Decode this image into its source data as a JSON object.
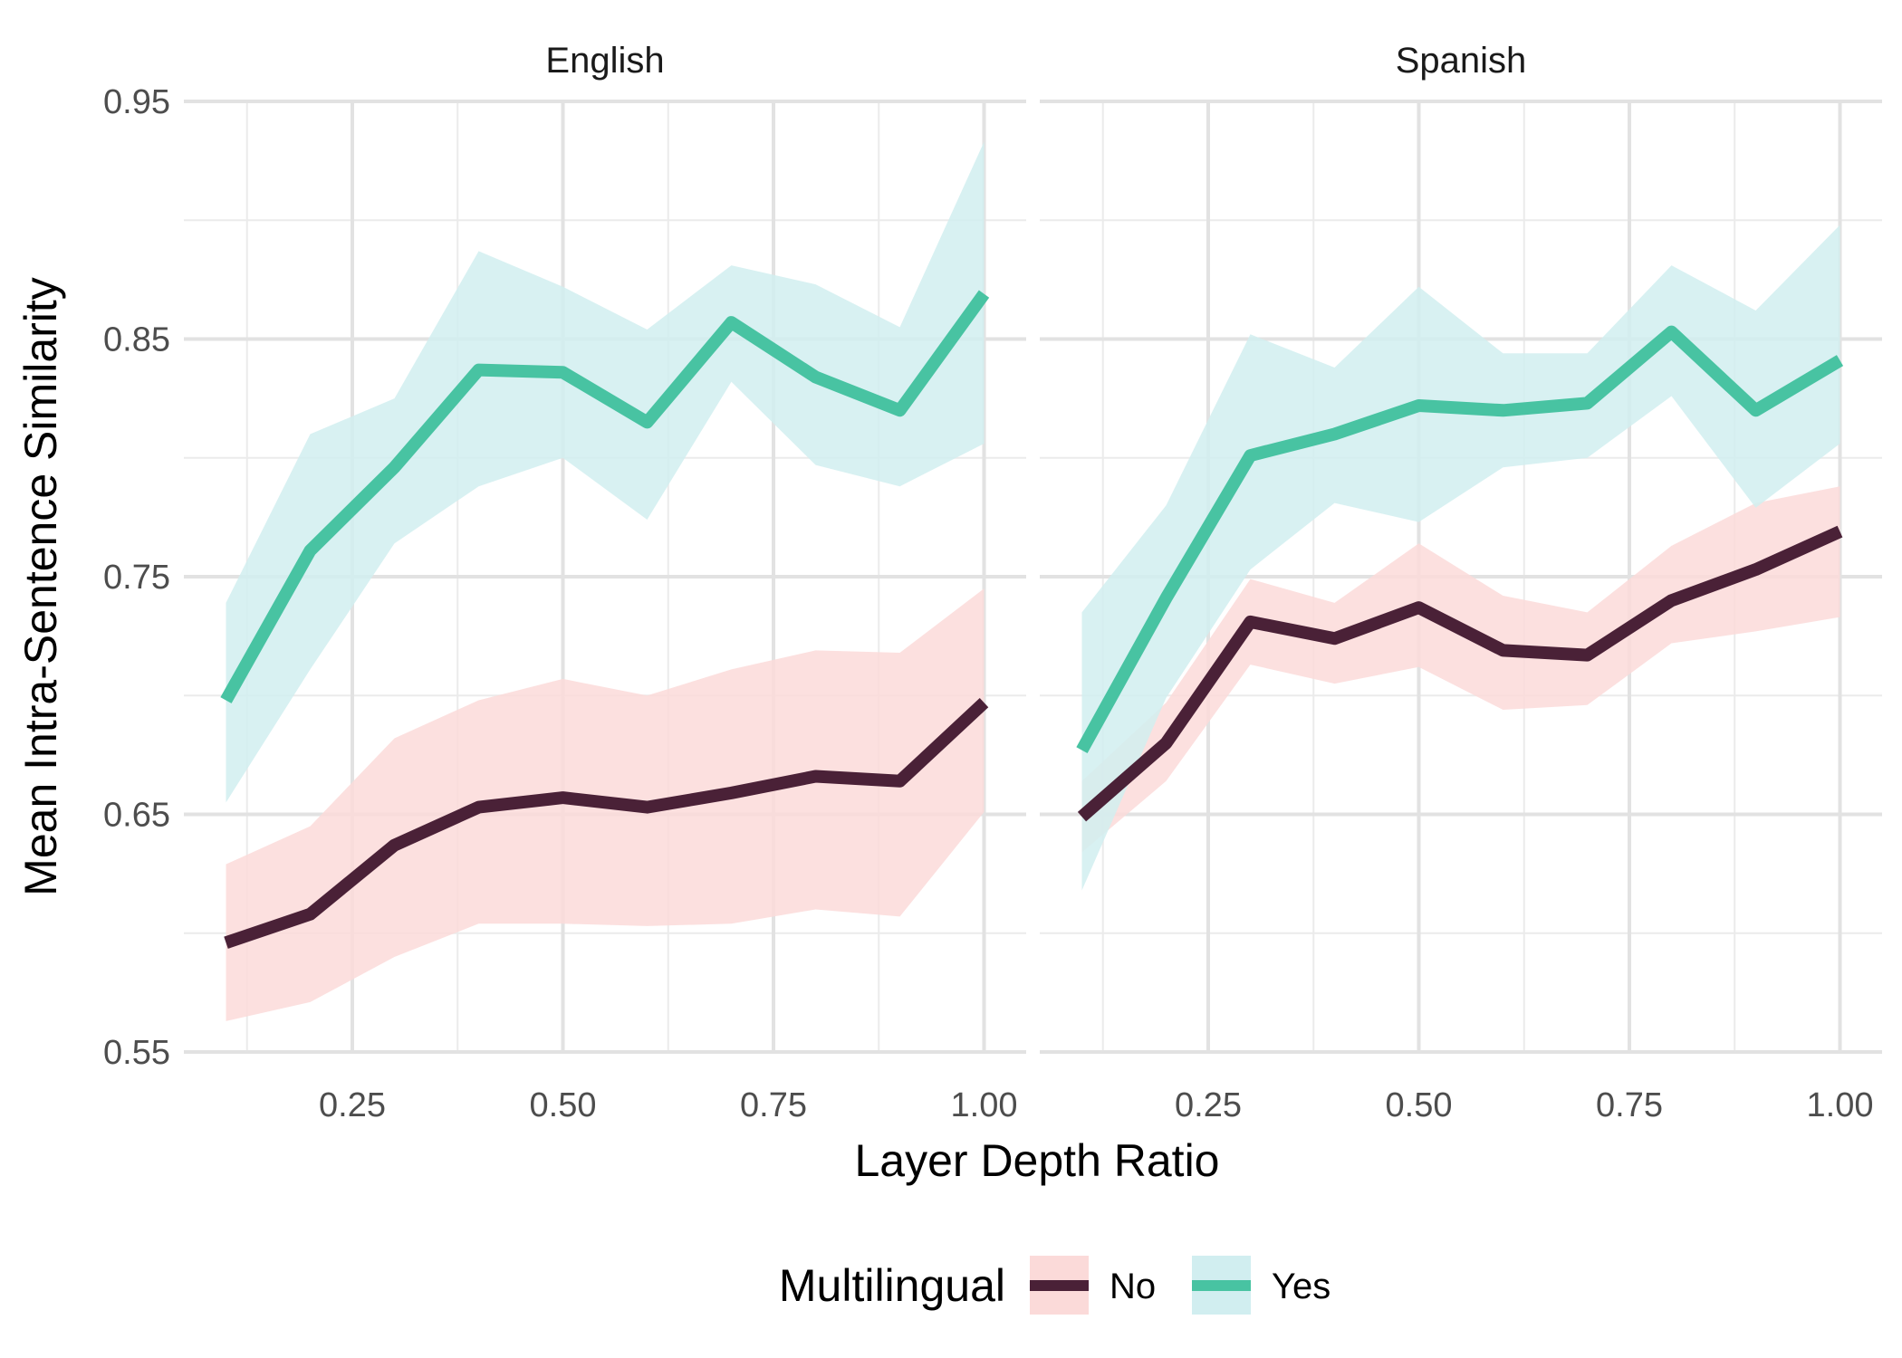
{
  "chart_data": {
    "type": "line",
    "ylabel": "Mean Intra-Sentence Similarity",
    "xlabel": "Layer Depth Ratio",
    "x_ticks": [
      "0.25",
      "0.50",
      "0.75",
      "1.00"
    ],
    "y_ticks": [
      "0.55",
      "0.65",
      "0.75",
      "0.85",
      "0.95"
    ],
    "xlim": [
      0.05,
      1.05
    ],
    "ylim": [
      0.55,
      0.95
    ],
    "grid": true,
    "legend": {
      "title": "Multilingual",
      "position": "bottom",
      "entries": [
        {
          "label": "No",
          "line_color": "#4a2137",
          "fill_color": "#fbdad9"
        },
        {
          "label": "Yes",
          "line_color": "#48c3a2",
          "fill_color": "#d1eef0"
        }
      ]
    },
    "panels": [
      {
        "title": "English",
        "x": [
          0.1,
          0.2,
          0.3,
          0.4,
          0.5,
          0.6,
          0.7,
          0.8,
          0.9,
          1.0
        ],
        "series": [
          {
            "name": "No",
            "values": [
              0.596,
              0.608,
              0.637,
              0.653,
              0.657,
              0.653,
              0.659,
              0.666,
              0.664,
              0.697
            ],
            "lower": [
              0.563,
              0.571,
              0.59,
              0.604,
              0.604,
              0.603,
              0.604,
              0.61,
              0.607,
              0.651
            ],
            "upper": [
              0.629,
              0.645,
              0.682,
              0.698,
              0.707,
              0.7,
              0.711,
              0.719,
              0.718,
              0.745
            ]
          },
          {
            "name": "Yes",
            "values": [
              0.698,
              0.761,
              0.796,
              0.837,
              0.836,
              0.815,
              0.857,
              0.834,
              0.82,
              0.869
            ],
            "lower": [
              0.655,
              0.711,
              0.764,
              0.788,
              0.8,
              0.774,
              0.832,
              0.797,
              0.788,
              0.806
            ],
            "upper": [
              0.739,
              0.81,
              0.825,
              0.887,
              0.872,
              0.854,
              0.881,
              0.873,
              0.855,
              0.933
            ]
          }
        ]
      },
      {
        "title": "Spanish",
        "x": [
          0.1,
          0.2,
          0.3,
          0.4,
          0.5,
          0.6,
          0.7,
          0.8,
          0.9,
          1.0
        ],
        "series": [
          {
            "name": "No",
            "values": [
              0.649,
              0.68,
              0.731,
              0.724,
              0.737,
              0.719,
              0.717,
              0.74,
              0.753,
              0.769
            ],
            "lower": [
              0.634,
              0.664,
              0.713,
              0.705,
              0.712,
              0.694,
              0.696,
              0.722,
              0.727,
              0.733
            ],
            "upper": [
              0.664,
              0.697,
              0.749,
              0.739,
              0.764,
              0.742,
              0.735,
              0.763,
              0.781,
              0.788
            ]
          },
          {
            "name": "Yes",
            "values": [
              0.677,
              0.741,
              0.801,
              0.81,
              0.822,
              0.82,
              0.823,
              0.853,
              0.82,
              0.841
            ],
            "lower": [
              0.618,
              0.699,
              0.753,
              0.781,
              0.773,
              0.796,
              0.8,
              0.826,
              0.779,
              0.806
            ],
            "upper": [
              0.735,
              0.78,
              0.852,
              0.838,
              0.872,
              0.844,
              0.844,
              0.881,
              0.862,
              0.898
            ]
          }
        ]
      }
    ]
  }
}
